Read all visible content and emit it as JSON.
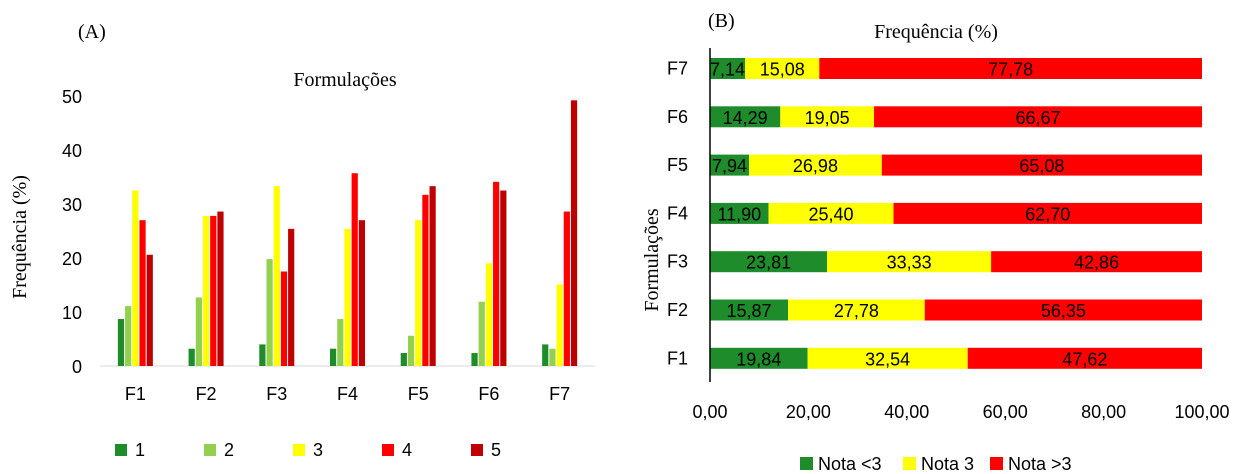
{
  "chart_data": [
    {
      "type": "bar",
      "panel_label": "(A)",
      "title": "Formulações",
      "ylabel": "Frequência (%)",
      "ylim": [
        0,
        50
      ],
      "yticks": [
        "0",
        "10",
        "20",
        "30",
        "40",
        "50"
      ],
      "grid": false,
      "legend_position": "bottom",
      "categories": [
        "F1",
        "F2",
        "F3",
        "F4",
        "F5",
        "F6",
        "F7"
      ],
      "series": [
        {
          "name": "1",
          "color": "#1e8c2a",
          "values": [
            8.7,
            3.2,
            4.0,
            3.2,
            2.4,
            2.4,
            4.0
          ]
        },
        {
          "name": "2",
          "color": "#92d050",
          "values": [
            11.1,
            12.7,
            19.8,
            8.7,
            5.6,
            11.9,
            3.2
          ]
        },
        {
          "name": "3",
          "color": "#ffff00",
          "values": [
            32.5,
            27.8,
            33.3,
            25.4,
            27.0,
            19.0,
            15.1
          ]
        },
        {
          "name": "4",
          "color": "#ff0000",
          "values": [
            27.0,
            27.8,
            17.5,
            35.7,
            31.7,
            34.1,
            28.6
          ]
        },
        {
          "name": "5",
          "color": "#c00000",
          "values": [
            20.6,
            28.6,
            25.4,
            27.0,
            33.3,
            32.5,
            49.2
          ]
        }
      ]
    },
    {
      "type": "bar",
      "orientation": "horizontal",
      "stacked": true,
      "panel_label": "(B)",
      "title": "Frequência (%)",
      "ylabel": "Formulações",
      "xlim": [
        0,
        100
      ],
      "xticks": [
        "0,00",
        "20,00",
        "40,00",
        "60,00",
        "80,00",
        "100,00"
      ],
      "grid": false,
      "legend_position": "bottom",
      "categories": [
        "F7",
        "F6",
        "F5",
        "F4",
        "F3",
        "F2",
        "F1"
      ],
      "series": [
        {
          "name": "Nota <3",
          "color": "#1e8c2a",
          "values": [
            7.14,
            14.29,
            7.94,
            11.9,
            23.81,
            15.87,
            19.84
          ],
          "labels": [
            "7,14",
            "14,29",
            "7,94",
            "11,90",
            "23,81",
            "15,87",
            "19,84"
          ]
        },
        {
          "name": "Nota 3",
          "color": "#ffff00",
          "values": [
            15.08,
            19.05,
            26.98,
            25.4,
            33.33,
            27.78,
            32.54
          ],
          "labels": [
            "15,08",
            "19,05",
            "26,98",
            "25,40",
            "33,33",
            "27,78",
            "32,54"
          ]
        },
        {
          "name": "Nota >3",
          "color": "#ff0000",
          "values": [
            77.78,
            66.67,
            65.08,
            62.7,
            42.86,
            56.35,
            47.62
          ],
          "labels": [
            "77,78",
            "66,67",
            "65,08",
            "62,70",
            "42,86",
            "56,35",
            "47,62"
          ]
        }
      ]
    }
  ]
}
